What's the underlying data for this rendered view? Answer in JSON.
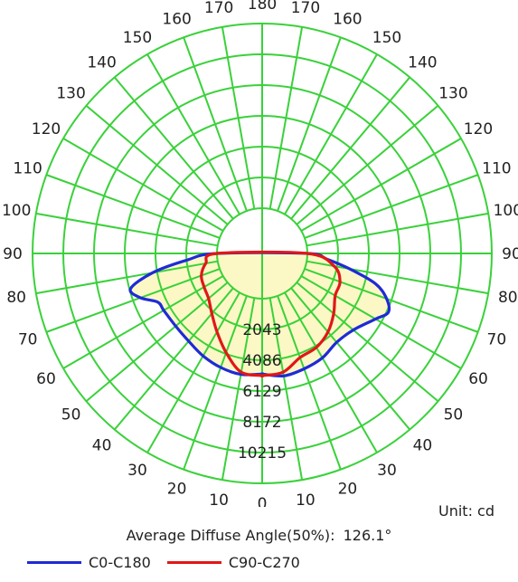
{
  "chart_data": {
    "type": "polar",
    "unit_label": "Unit: cd",
    "average_diffuse_angle": {
      "label": "Average Diffuse Angle(50%):",
      "value": "126.1°"
    },
    "radial_ticks": [
      2043,
      4086,
      6129,
      8172,
      10215
    ],
    "radial_max": 10215,
    "angle_labels_left": [
      "0",
      "10",
      "20",
      "30",
      "40",
      "50",
      "60",
      "70",
      "80",
      "90",
      "100",
      "110",
      "120",
      "130",
      "140",
      "150",
      "160",
      "170",
      "180"
    ],
    "angle_labels_right": [
      "10",
      "20",
      "30",
      "40",
      "50",
      "60",
      "70",
      "80",
      "90",
      "100",
      "110",
      "120",
      "130",
      "140",
      "150",
      "160",
      "170"
    ],
    "grid": true,
    "fill_color": "#fbf8c5",
    "grid_color": "#3ad13a",
    "legend_placement": "bottom",
    "series": [
      {
        "name": "C0-C180",
        "color": "#1f2bd6",
        "angles": [
          0,
          10,
          20,
          30,
          40,
          50,
          60,
          65,
          70,
          75,
          80,
          85,
          90
        ],
        "left": [
          5000,
          5150,
          5050,
          4850,
          4600,
          4500,
          4550,
          4650,
          5600,
          6050,
          4400,
          2000,
          0
        ],
        "right": [
          5000,
          5250,
          5150,
          5000,
          4700,
          4900,
          5700,
          6250,
          5800,
          4800,
          2900,
          1300,
          0
        ]
      },
      {
        "name": "C90-C270",
        "color": "#e11717",
        "angles": [
          0,
          10,
          20,
          30,
          40,
          50,
          60,
          70,
          80,
          90
        ],
        "left": [
          5100,
          5000,
          4000,
          3000,
          2200,
          1650,
          1450,
          1300,
          800,
          0
        ],
        "right": [
          5100,
          5000,
          4350,
          4200,
          3800,
          3200,
          2600,
          2500,
          1850,
          0
        ]
      }
    ]
  }
}
